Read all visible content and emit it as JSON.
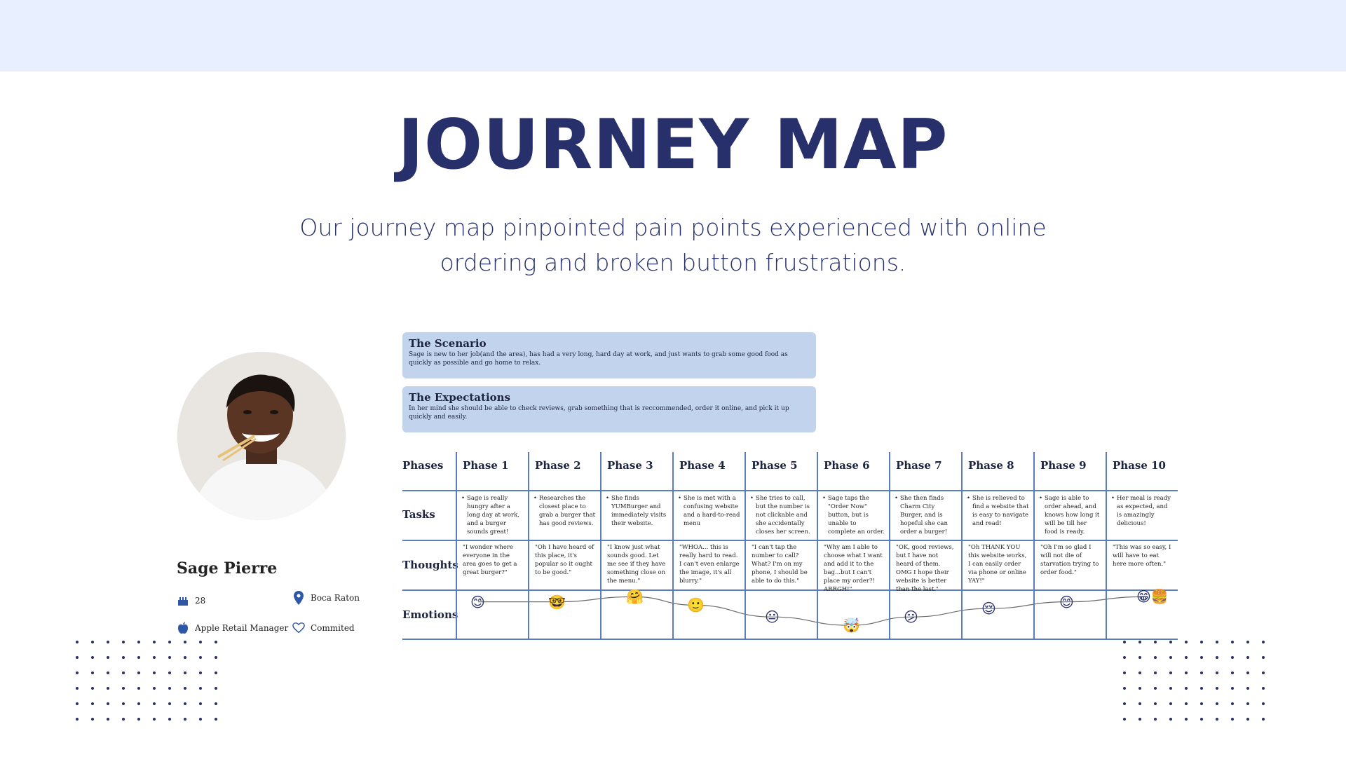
{
  "page": {
    "title": "JOURNEY MAP",
    "subtitle_line1": "Our journey map pinpointed pain points experienced with online",
    "subtitle_line2": "ordering and broken button frustrations."
  },
  "persona": {
    "name": "Sage Pierre",
    "age": "28",
    "location": "Boca Raton",
    "occupation": "Apple Retail Manager",
    "status": "Commited",
    "icons": {
      "age": "cake-icon",
      "location": "map-pin-icon",
      "occupation": "apple-logo-icon",
      "status": "heart-icon"
    }
  },
  "scenario": {
    "title": "The Scenario",
    "text": "Sage is new to her job(and the area), has had a very long, hard day at work, and just wants to grab some good food as quickly as possible and go home to relax."
  },
  "expectations": {
    "title": "The Expectations",
    "text": "In her mind she should be able to check reviews, grab something that is reccommended, order it online, and pick it up quickly and easily."
  },
  "journey": {
    "row_labels": {
      "phases": "Phases",
      "tasks": "Tasks",
      "thoughts": "Thoughts",
      "emotions": "Emotions"
    },
    "phases": [
      {
        "name": "Phase 1",
        "task": "Sage is really hungry after a long day at work, and a burger sounds great!",
        "thought": "\"I wonder where everyone in the area goes to get a great burger?\"",
        "emotion": "😊",
        "level": 0.2
      },
      {
        "name": "Phase 2",
        "task": "Researches the closest place to grab a burger that has good reviews.",
        "thought": "\"Oh I have heard of this place, it's popular so it ought to be good.\"",
        "emotion": "🤓",
        "level": 0.2
      },
      {
        "name": "Phase 3",
        "task": "She finds YUMBurger and immediately visits their website.",
        "thought": "\"I know just what sounds good. Let me see if they have something close on the menu.\"",
        "emotion": "🤗",
        "level": 0.05
      },
      {
        "name": "Phase 4",
        "task": "She is met with a confusing website and a hard-to-read menu",
        "thought": "\"WHOA... this is really hard to read. I can't even enlarge the image, it's all blurry.\"",
        "emotion": "🙂",
        "level": 0.3
      },
      {
        "name": "Phase 5",
        "task": "She tries to call, but the number is not clickable and she accidentally closes her screen.",
        "thought": "\"I can't tap the number to call? What? I'm on my phone, I should be able to do this.\"",
        "emotion": "😐",
        "level": 0.65
      },
      {
        "name": "Phase 6",
        "task": "Sage taps the \"Order Now\" button, but is unable to complete an order.",
        "thought": "\"Why am I able to choose what I want and add it to the bag...but I can't place my order?! ARRGH!\"",
        "emotion": "🤯",
        "level": 0.9
      },
      {
        "name": "Phase 7",
        "task": "She then finds Charm City Burger, and is hopeful she can order a burger!",
        "thought": "\"OK, good reviews, but I have not heard of them. OMG I hope their website is better than the last.\"",
        "emotion": "😕",
        "level": 0.65
      },
      {
        "name": "Phase 8",
        "task": "She is relieved to find a website that is easy to navigate and read!",
        "thought": "\"Oh THANK YOU this website works, I can easily order via phone or online YAY!\"",
        "emotion": "😌",
        "level": 0.4
      },
      {
        "name": "Phase 9",
        "task": "Sage is able to order ahead, and knows how long it will be till her food is ready.",
        "thought": "\"Oh I'm so glad I will not die of starvation trying to order food.\"",
        "emotion": "😊",
        "level": 0.2
      },
      {
        "name": "Phase 10",
        "task": "Her meal is ready as expected, and is amazingly delicious!",
        "thought": "\"This was so easy, I will have to eat here more often.\"",
        "emotion": "😁🍔",
        "level": 0.05
      }
    ]
  },
  "colors": {
    "navy": "#27306b",
    "band": "#e8efff",
    "card": "#c2d3ee",
    "grid": "#5b7dbb"
  }
}
